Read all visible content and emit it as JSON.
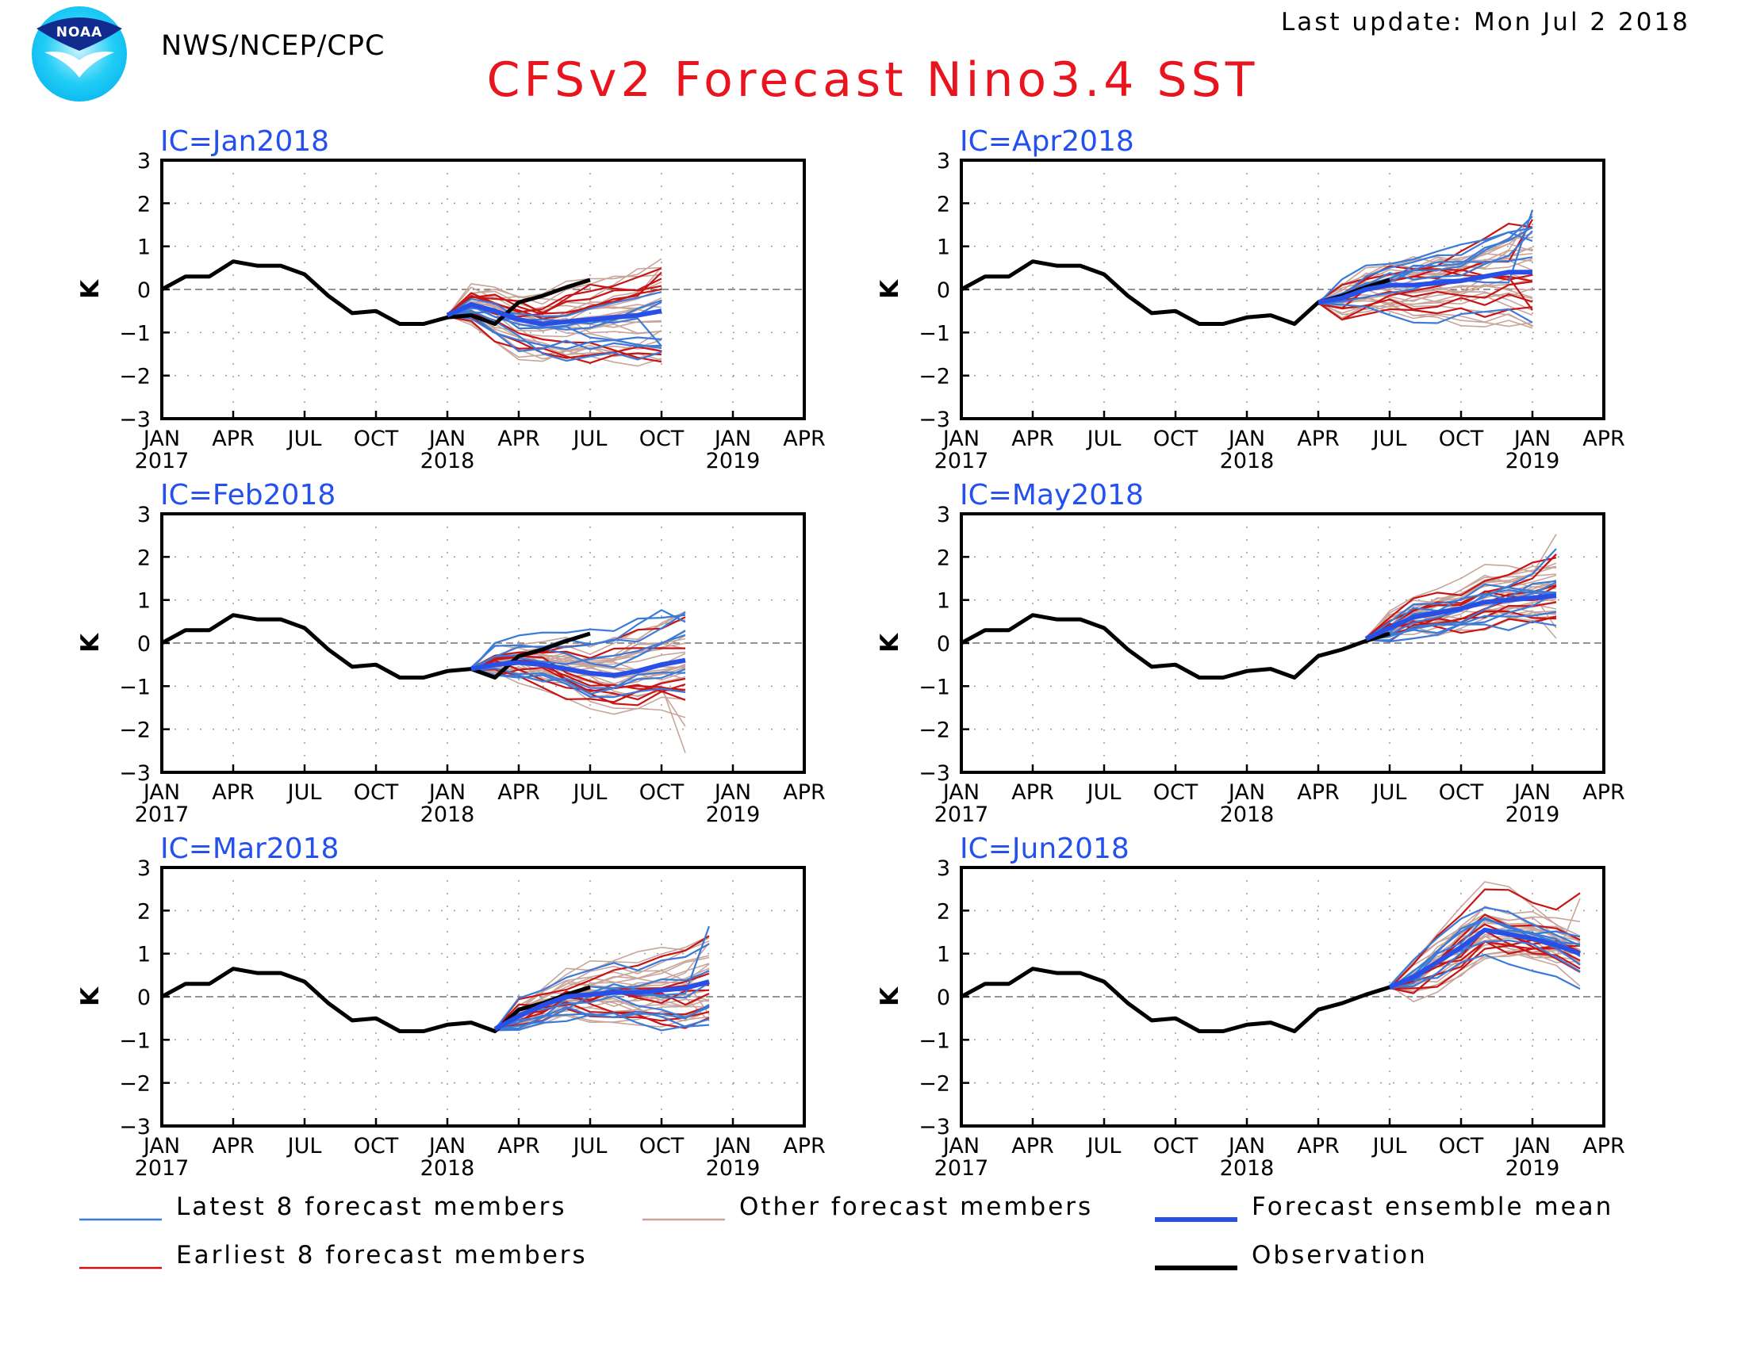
{
  "header": {
    "org": "NWS/NCEP/CPC",
    "logo_text": "NOAA",
    "last_update": "Last update: Mon Jul 2 2018",
    "title": "CFSv2 Forecast Nino3.4 SST"
  },
  "colors": {
    "title": "#e8141e",
    "panel_label": "#2450ee",
    "latest": "#3a7ad8",
    "earliest": "#c81414",
    "other": "#c7a59a",
    "mean": "#2850e6",
    "observation": "#000000"
  },
  "legend": [
    {
      "key": "latest",
      "label": "Latest 8 forecast members"
    },
    {
      "key": "other",
      "label": "Other forecast members"
    },
    {
      "key": "mean",
      "label": "Forecast ensemble mean"
    },
    {
      "key": "earliest",
      "label": "Earliest 8 forecast members"
    },
    {
      "key": "observation",
      "label": "Observation"
    }
  ],
  "chart_data": [
    {
      "type": "line",
      "label": "IC=Jan2018",
      "ylabel": "K",
      "ylim": [
        -3,
        3
      ],
      "yticks": [
        "3",
        "2",
        "1",
        "0",
        "−1",
        "−2",
        "−3"
      ],
      "xticks": [
        "JAN",
        "APR",
        "JUL",
        "OCT",
        "JAN",
        "APR",
        "JUL",
        "OCT",
        "JAN",
        "APR"
      ],
      "year_labels": [
        {
          "pos": 0,
          "text": "2017"
        },
        {
          "pos": 4,
          "text": "2018"
        },
        {
          "pos": 8,
          "text": "2019"
        }
      ],
      "obs_months": [
        0,
        1,
        2,
        3,
        4,
        5,
        6,
        7,
        8,
        9,
        10,
        11,
        12,
        13,
        14,
        15,
        16,
        17,
        18
      ],
      "observation": [
        0.0,
        0.3,
        0.3,
        0.65,
        0.55,
        0.55,
        0.35,
        -0.15,
        -0.55,
        -0.5,
        -0.8,
        -0.8,
        -0.65,
        -0.6,
        -0.8,
        -0.3,
        -0.15,
        0.05,
        0.22
      ],
      "forecast_start": 12,
      "forecast_end": 21,
      "mean": [
        -0.6,
        -0.35,
        -0.5,
        -0.7,
        -0.8,
        -0.75,
        -0.7,
        -0.65,
        -0.6,
        -0.5
      ],
      "spread": [
        0.05,
        0.2,
        0.35,
        0.45,
        0.55,
        0.65,
        0.75,
        0.85,
        0.95,
        1.05
      ],
      "upper_tail": 1.2,
      "lower_tail": 1.0
    },
    {
      "type": "line",
      "label": "IC=Apr2018",
      "ylabel": "K",
      "ylim": [
        -3,
        3
      ],
      "yticks": [
        "3",
        "2",
        "1",
        "0",
        "−1",
        "−2",
        "−3"
      ],
      "xticks": [
        "JAN",
        "APR",
        "JUL",
        "OCT",
        "JAN",
        "APR",
        "JUL",
        "OCT",
        "JAN",
        "APR"
      ],
      "year_labels": [
        {
          "pos": 0,
          "text": "2017"
        },
        {
          "pos": 4,
          "text": "2018"
        },
        {
          "pos": 8,
          "text": "2019"
        }
      ],
      "obs_months": [
        0,
        1,
        2,
        3,
        4,
        5,
        6,
        7,
        8,
        9,
        10,
        11,
        12,
        13,
        14,
        15,
        16,
        17,
        18
      ],
      "observation": [
        0.0,
        0.3,
        0.3,
        0.65,
        0.55,
        0.55,
        0.35,
        -0.15,
        -0.55,
        -0.5,
        -0.8,
        -0.8,
        -0.65,
        -0.6,
        -0.8,
        -0.3,
        -0.15,
        0.05,
        0.22
      ],
      "forecast_start": 15,
      "forecast_end": 24,
      "mean": [
        -0.3,
        -0.2,
        0.0,
        0.1,
        0.1,
        0.15,
        0.2,
        0.3,
        0.4,
        0.4
      ],
      "spread": [
        0.05,
        0.2,
        0.3,
        0.4,
        0.5,
        0.6,
        0.7,
        0.8,
        0.9,
        1.0
      ],
      "upper_tail": 1.25,
      "lower_tail": 1.0
    },
    {
      "type": "line",
      "label": "IC=Feb2018",
      "ylabel": "K",
      "ylim": [
        -3,
        3
      ],
      "yticks": [
        "3",
        "2",
        "1",
        "0",
        "−1",
        "−2",
        "−3"
      ],
      "xticks": [
        "JAN",
        "APR",
        "JUL",
        "OCT",
        "JAN",
        "APR",
        "JUL",
        "OCT",
        "JAN",
        "APR"
      ],
      "year_labels": [
        {
          "pos": 0,
          "text": "2017"
        },
        {
          "pos": 4,
          "text": "2018"
        },
        {
          "pos": 8,
          "text": "2019"
        }
      ],
      "obs_months": [
        0,
        1,
        2,
        3,
        4,
        5,
        6,
        7,
        8,
        9,
        10,
        11,
        12,
        13,
        14,
        15,
        16,
        17,
        18
      ],
      "observation": [
        0.0,
        0.3,
        0.3,
        0.65,
        0.55,
        0.55,
        0.35,
        -0.15,
        -0.55,
        -0.5,
        -0.8,
        -0.8,
        -0.65,
        -0.6,
        -0.8,
        -0.3,
        -0.15,
        0.05,
        0.22
      ],
      "forecast_start": 13,
      "forecast_end": 22,
      "mean": [
        -0.6,
        -0.5,
        -0.45,
        -0.5,
        -0.6,
        -0.7,
        -0.75,
        -0.65,
        -0.5,
        -0.4
      ],
      "spread": [
        0.05,
        0.2,
        0.3,
        0.4,
        0.5,
        0.6,
        0.7,
        0.8,
        0.9,
        1.0
      ],
      "upper_tail": 1.1,
      "lower_tail": 2.0
    },
    {
      "type": "line",
      "label": "IC=May2018",
      "ylabel": "K",
      "ylim": [
        -3,
        3
      ],
      "yticks": [
        "3",
        "2",
        "1",
        "0",
        "−1",
        "−2",
        "−3"
      ],
      "xticks": [
        "JAN",
        "APR",
        "JUL",
        "OCT",
        "JAN",
        "APR",
        "JUL",
        "OCT",
        "JAN",
        "APR"
      ],
      "year_labels": [
        {
          "pos": 0,
          "text": "2017"
        },
        {
          "pos": 4,
          "text": "2018"
        },
        {
          "pos": 8,
          "text": "2019"
        }
      ],
      "obs_months": [
        0,
        1,
        2,
        3,
        4,
        5,
        6,
        7,
        8,
        9,
        10,
        11,
        12,
        13,
        14,
        15,
        16,
        17,
        18
      ],
      "observation": [
        0.0,
        0.3,
        0.3,
        0.65,
        0.55,
        0.55,
        0.35,
        -0.15,
        -0.55,
        -0.5,
        -0.8,
        -0.8,
        -0.65,
        -0.6,
        -0.8,
        -0.3,
        -0.15,
        0.05,
        0.22
      ],
      "forecast_start": 17,
      "forecast_end": 25,
      "mean": [
        0.1,
        0.35,
        0.6,
        0.7,
        0.8,
        0.95,
        1.0,
        1.05,
        1.1
      ],
      "spread": [
        0.05,
        0.2,
        0.35,
        0.45,
        0.5,
        0.55,
        0.6,
        0.65,
        0.7
      ],
      "upper_tail": 1.2,
      "lower_tail": 1.0
    },
    {
      "type": "line",
      "label": "IC=Mar2018",
      "ylabel": "K",
      "ylim": [
        -3,
        3
      ],
      "yticks": [
        "3",
        "2",
        "1",
        "0",
        "−1",
        "−2",
        "−3"
      ],
      "xticks": [
        "JAN",
        "APR",
        "JUL",
        "OCT",
        "JAN",
        "APR",
        "JUL",
        "OCT",
        "JAN",
        "APR"
      ],
      "year_labels": [
        {
          "pos": 0,
          "text": "2017"
        },
        {
          "pos": 4,
          "text": "2018"
        },
        {
          "pos": 8,
          "text": "2019"
        }
      ],
      "obs_months": [
        0,
        1,
        2,
        3,
        4,
        5,
        6,
        7,
        8,
        9,
        10,
        11,
        12,
        13,
        14,
        15,
        16,
        17,
        18
      ],
      "observation": [
        0.0,
        0.3,
        0.3,
        0.65,
        0.55,
        0.55,
        0.35,
        -0.15,
        -0.55,
        -0.5,
        -0.8,
        -0.8,
        -0.65,
        -0.6,
        -0.8,
        -0.3,
        -0.15,
        0.05,
        0.22
      ],
      "forecast_start": 14,
      "forecast_end": 23,
      "mean": [
        -0.75,
        -0.45,
        -0.2,
        0.0,
        0.05,
        0.1,
        0.1,
        0.15,
        0.2,
        0.35
      ],
      "spread": [
        0.05,
        0.2,
        0.3,
        0.4,
        0.5,
        0.6,
        0.7,
        0.8,
        0.9,
        1.0
      ],
      "upper_tail": 1.2,
      "lower_tail": 1.0
    },
    {
      "type": "line",
      "label": "IC=Jun2018",
      "ylabel": "K",
      "ylim": [
        -3,
        3
      ],
      "yticks": [
        "3",
        "2",
        "1",
        "0",
        "−1",
        "−2",
        "−3"
      ],
      "xticks": [
        "JAN",
        "APR",
        "JUL",
        "OCT",
        "JAN",
        "APR",
        "JUL",
        "OCT",
        "JAN",
        "APR"
      ],
      "year_labels": [
        {
          "pos": 0,
          "text": "2017"
        },
        {
          "pos": 4,
          "text": "2018"
        },
        {
          "pos": 8,
          "text": "2019"
        }
      ],
      "obs_months": [
        0,
        1,
        2,
        3,
        4,
        5,
        6,
        7,
        8,
        9,
        10,
        11,
        12,
        13,
        14,
        15,
        16,
        17,
        18
      ],
      "observation": [
        0.0,
        0.3,
        0.3,
        0.65,
        0.55,
        0.55,
        0.35,
        -0.15,
        -0.55,
        -0.5,
        -0.8,
        -0.8,
        -0.65,
        -0.6,
        -0.8,
        -0.3,
        -0.15,
        0.05,
        0.22
      ],
      "forecast_start": 18,
      "forecast_end": 26,
      "mean": [
        0.22,
        0.45,
        0.8,
        1.15,
        1.55,
        1.45,
        1.35,
        1.2,
        1.0
      ],
      "spread": [
        0.05,
        0.25,
        0.4,
        0.55,
        0.6,
        0.55,
        0.5,
        0.45,
        0.4
      ],
      "upper_tail": 1.3,
      "lower_tail": 0.9
    }
  ]
}
